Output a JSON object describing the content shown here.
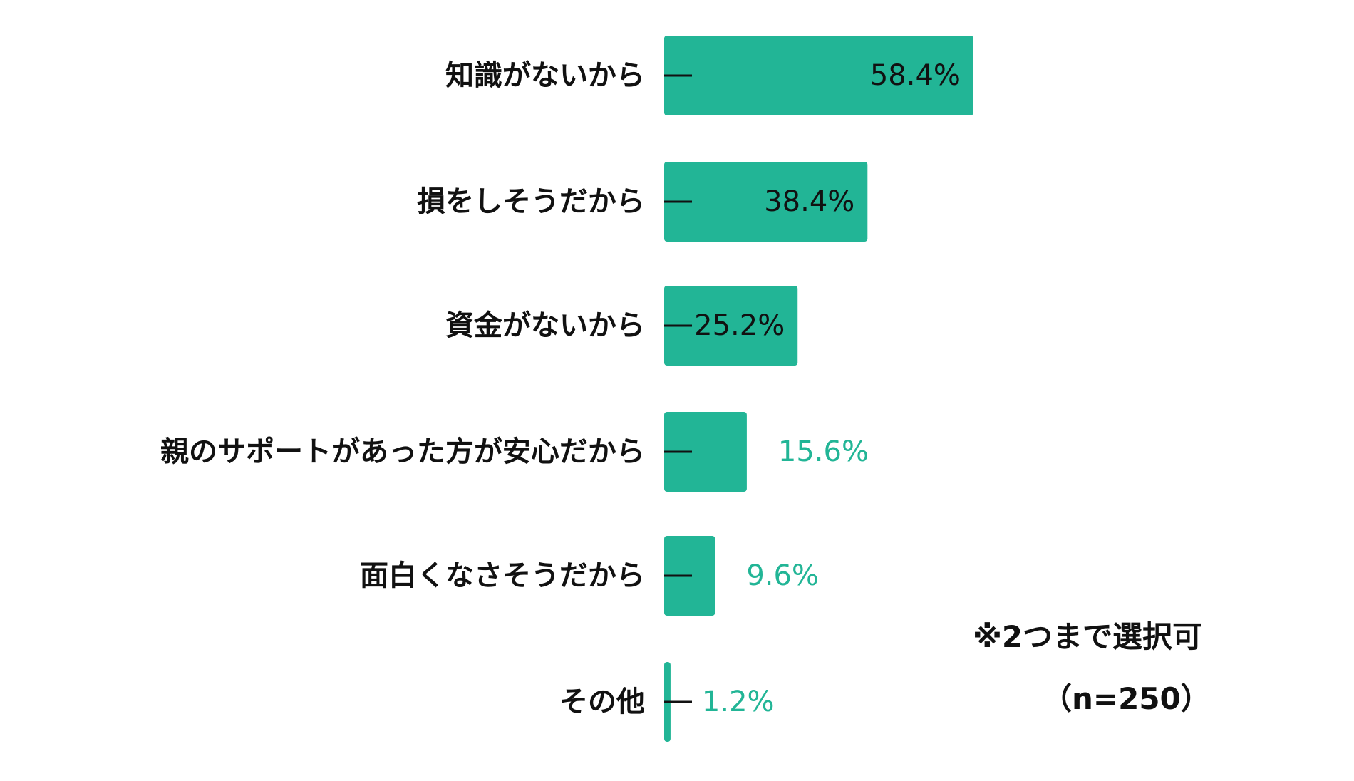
{
  "chart_data": {
    "type": "bar",
    "orientation": "horizontal",
    "categories": [
      "知識がないから",
      "損をしそうだから",
      "資金がないから",
      "親のサポートがあった方が安心だから",
      "面白くなさそうだから",
      "その他"
    ],
    "values": [
      58.4,
      38.4,
      25.2,
      15.6,
      9.6,
      1.2
    ],
    "value_labels": [
      "58.4%",
      "38.4%",
      "25.2%",
      "15.6%",
      "9.6%",
      "1.2%"
    ],
    "unit": "%",
    "grid": false,
    "bar_color": "#22b596",
    "inside_label_color": "#111111",
    "outside_label_color": "#22b596"
  },
  "notes": {
    "selection": "※2つまで選択可",
    "sample": "（n=250）"
  }
}
